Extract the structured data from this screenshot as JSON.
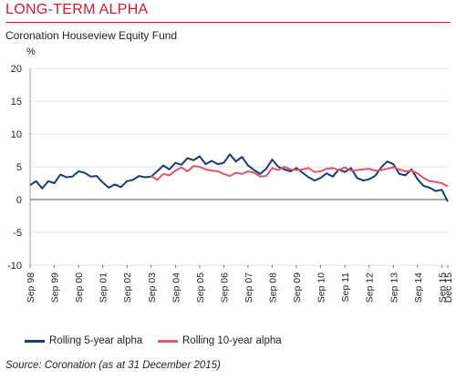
{
  "header": {
    "title": "LONG-TERM ALPHA",
    "subtitle": "Coronation Houseview Equity Fund"
  },
  "source": "Source: Coronation (as at 31 December 2015)",
  "colors": {
    "accent": "#c8202f",
    "series_5y": "#1f3a6e",
    "series_10y": "#d9586b",
    "grid": "#d9d9d9"
  },
  "chart_data": {
    "type": "line",
    "title": "LONG-TERM ALPHA",
    "subtitle": "Coronation Houseview Equity Fund",
    "ylabel": "%",
    "ylim": [
      -10,
      20
    ],
    "yticks": [
      "20",
      "15",
      "10",
      "5",
      "0",
      "-5",
      "-10"
    ],
    "xlim": [
      "Sep 98",
      "Dec 15"
    ],
    "xticks": [
      "Sep 98",
      "Sep 99",
      "Sep 00",
      "Sep 01",
      "Sep 02",
      "Sep 03",
      "Sep 04",
      "Sep 05",
      "Sep 06",
      "Sep 07",
      "Sep 08",
      "Sep 09",
      "Sep 10",
      "Sep 11",
      "Sep 12",
      "Sep 13",
      "Sep 14",
      "Sep 15",
      "Dec 15"
    ],
    "grid": "horizontal",
    "legend_position": "bottom",
    "series": [
      {
        "name": "Rolling 5-year alpha",
        "x": [
          "Sep 98",
          "Dec 98",
          "Mar 99",
          "Jun 99",
          "Sep 99",
          "Dec 99",
          "Mar 00",
          "Jun 00",
          "Sep 00",
          "Dec 00",
          "Mar 01",
          "Jun 01",
          "Sep 01",
          "Dec 01",
          "Mar 02",
          "Jun 02",
          "Sep 02",
          "Dec 02",
          "Mar 03",
          "Jun 03",
          "Sep 03",
          "Dec 03",
          "Mar 04",
          "Jun 04",
          "Sep 04",
          "Dec 04",
          "Mar 05",
          "Jun 05",
          "Sep 05",
          "Dec 05",
          "Mar 06",
          "Jun 06",
          "Sep 06",
          "Dec 06",
          "Mar 07",
          "Jun 07",
          "Sep 07",
          "Dec 07",
          "Mar 08",
          "Jun 08",
          "Sep 08",
          "Dec 08",
          "Mar 09",
          "Jun 09",
          "Sep 09",
          "Dec 09",
          "Mar 10",
          "Jun 10",
          "Sep 10",
          "Dec 10",
          "Mar 11",
          "Jun 11",
          "Sep 11",
          "Dec 11",
          "Mar 12",
          "Jun 12",
          "Sep 12",
          "Dec 12",
          "Mar 13",
          "Jun 13",
          "Sep 13",
          "Dec 13",
          "Mar 14",
          "Jun 14",
          "Sep 14",
          "Dec 14",
          "Mar 15",
          "Jun 15",
          "Sep 15",
          "Dec 15"
        ],
        "values": [
          2.2,
          2.8,
          1.7,
          2.8,
          2.5,
          3.8,
          3.4,
          3.5,
          4.3,
          4.1,
          3.5,
          3.6,
          2.6,
          1.8,
          2.3,
          1.9,
          2.8,
          3.0,
          3.6,
          3.4,
          3.5,
          4.3,
          5.2,
          4.6,
          5.6,
          5.3,
          6.3,
          6.0,
          6.6,
          5.4,
          5.9,
          5.4,
          5.6,
          6.9,
          5.8,
          6.5,
          5.2,
          4.5,
          3.9,
          4.7,
          6.1,
          5.0,
          4.6,
          4.3,
          4.8,
          4.1,
          3.4,
          2.9,
          3.3,
          4.0,
          3.5,
          4.6,
          4.2,
          4.8,
          3.3,
          2.9,
          3.1,
          3.6,
          4.9,
          5.8,
          5.4,
          3.9,
          3.7,
          4.6,
          3.1,
          2.1,
          1.8,
          1.3,
          1.5,
          -0.3
        ]
      },
      {
        "name": "Rolling 10-year alpha",
        "x": [
          "Sep 03",
          "Dec 03",
          "Mar 04",
          "Jun 04",
          "Sep 04",
          "Dec 04",
          "Mar 05",
          "Jun 05",
          "Sep 05",
          "Dec 05",
          "Mar 06",
          "Jun 06",
          "Sep 06",
          "Dec 06",
          "Mar 07",
          "Jun 07",
          "Sep 07",
          "Dec 07",
          "Mar 08",
          "Jun 08",
          "Sep 08",
          "Dec 08",
          "Mar 09",
          "Jun 09",
          "Sep 09",
          "Dec 09",
          "Mar 10",
          "Jun 10",
          "Sep 10",
          "Dec 10",
          "Mar 11",
          "Jun 11",
          "Sep 11",
          "Dec 11",
          "Mar 12",
          "Jun 12",
          "Sep 12",
          "Dec 12",
          "Mar 13",
          "Jun 13",
          "Sep 13",
          "Dec 13",
          "Mar 14",
          "Jun 14",
          "Sep 14",
          "Dec 14",
          "Mar 15",
          "Jun 15",
          "Sep 15",
          "Dec 15"
        ],
        "values": [
          3.6,
          3.0,
          3.9,
          3.7,
          4.4,
          4.9,
          4.3,
          5.1,
          5.0,
          4.6,
          4.4,
          4.3,
          3.9,
          3.6,
          4.1,
          3.9,
          4.3,
          4.1,
          3.5,
          3.6,
          4.8,
          4.5,
          5.0,
          4.6,
          4.5,
          4.6,
          4.8,
          4.2,
          4.3,
          4.7,
          4.8,
          4.5,
          4.9,
          4.4,
          4.5,
          4.6,
          4.7,
          4.4,
          4.5,
          4.7,
          4.9,
          4.6,
          4.3,
          4.4,
          4.0,
          3.3,
          2.8,
          2.7,
          2.5,
          2.0
        ]
      }
    ]
  }
}
